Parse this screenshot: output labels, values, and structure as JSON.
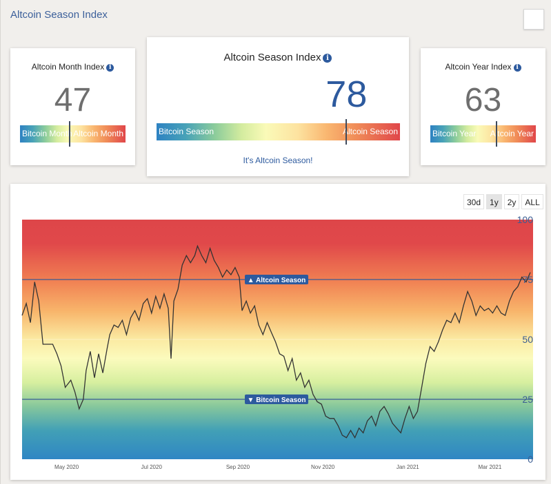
{
  "page": {
    "title": "Altcoin Season Index"
  },
  "cards": {
    "month": {
      "title": "Altcoin Month Index",
      "value": "47",
      "value_fraction": 0.47,
      "left_label": "Bitcoin Month",
      "right_label": "Altcoin Month"
    },
    "season": {
      "title": "Altcoin Season Index",
      "value": "78",
      "value_fraction": 0.78,
      "left_label": "Bitcoin Season",
      "right_label": "Altcoin Season",
      "status": "It's Altcoin Season!"
    },
    "year": {
      "title": "Altcoin Year Index",
      "value": "63",
      "value_fraction": 0.63,
      "left_label": "Bitcoin Year",
      "right_label": "Altcoin Year"
    }
  },
  "range_buttons": [
    {
      "label": "30d",
      "active": false
    },
    {
      "label": "1y",
      "active": true
    },
    {
      "label": "2y",
      "active": false
    },
    {
      "label": "ALL",
      "active": false
    }
  ],
  "chart_data": {
    "type": "line",
    "ylim": [
      0,
      100
    ],
    "yticks": [
      100,
      75,
      50,
      25,
      0
    ],
    "xlim": [
      "2020-03-30",
      "2021-04-01"
    ],
    "xticks": [
      {
        "label": "May 2020",
        "date": "2020-05-01"
      },
      {
        "label": "Jul 2020",
        "date": "2020-07-01"
      },
      {
        "label": "Sep 2020",
        "date": "2020-09-01"
      },
      {
        "label": "Nov 2020",
        "date": "2020-11-01"
      },
      {
        "label": "Jan 2021",
        "date": "2021-01-01"
      },
      {
        "label": "Mar 2021",
        "date": "2021-03-01"
      }
    ],
    "thresholds": [
      {
        "label": "▲ Altcoin Season",
        "value": 75
      },
      {
        "label": "▼ Bitcoin Season",
        "value": 25
      }
    ],
    "series": [
      {
        "color": "#333333",
        "points": [
          [
            "2020-03-30",
            60
          ],
          [
            "2020-04-02",
            65
          ],
          [
            "2020-04-05",
            57
          ],
          [
            "2020-04-08",
            74
          ],
          [
            "2020-04-11",
            66
          ],
          [
            "2020-04-14",
            48
          ],
          [
            "2020-04-18",
            48
          ],
          [
            "2020-04-21",
            48
          ],
          [
            "2020-04-24",
            44
          ],
          [
            "2020-04-27",
            39
          ],
          [
            "2020-04-30",
            30
          ],
          [
            "2020-05-04",
            33
          ],
          [
            "2020-05-07",
            28
          ],
          [
            "2020-05-10",
            21
          ],
          [
            "2020-05-13",
            25
          ],
          [
            "2020-05-15",
            37
          ],
          [
            "2020-05-18",
            45
          ],
          [
            "2020-05-21",
            34
          ],
          [
            "2020-05-24",
            44
          ],
          [
            "2020-05-27",
            36
          ],
          [
            "2020-05-30",
            46
          ],
          [
            "2020-06-01",
            52
          ],
          [
            "2020-06-04",
            56
          ],
          [
            "2020-06-07",
            55
          ],
          [
            "2020-06-10",
            58
          ],
          [
            "2020-06-13",
            52
          ],
          [
            "2020-06-16",
            59
          ],
          [
            "2020-06-19",
            62
          ],
          [
            "2020-06-22",
            58
          ],
          [
            "2020-06-25",
            65
          ],
          [
            "2020-06-28",
            67
          ],
          [
            "2020-07-01",
            61
          ],
          [
            "2020-07-04",
            68
          ],
          [
            "2020-07-07",
            63
          ],
          [
            "2020-07-10",
            69
          ],
          [
            "2020-07-13",
            63
          ],
          [
            "2020-07-15",
            42
          ],
          [
            "2020-07-17",
            66
          ],
          [
            "2020-07-20",
            71
          ],
          [
            "2020-07-23",
            81
          ],
          [
            "2020-07-26",
            85
          ],
          [
            "2020-07-29",
            82
          ],
          [
            "2020-08-01",
            85
          ],
          [
            "2020-08-03",
            89
          ],
          [
            "2020-08-06",
            85
          ],
          [
            "2020-08-09",
            82
          ],
          [
            "2020-08-12",
            88
          ],
          [
            "2020-08-15",
            83
          ],
          [
            "2020-08-18",
            80
          ],
          [
            "2020-08-21",
            76
          ],
          [
            "2020-08-24",
            79
          ],
          [
            "2020-08-27",
            77
          ],
          [
            "2020-08-30",
            80
          ],
          [
            "2020-09-02",
            76
          ],
          [
            "2020-09-04",
            62
          ],
          [
            "2020-09-07",
            66
          ],
          [
            "2020-09-10",
            61
          ],
          [
            "2020-09-13",
            64
          ],
          [
            "2020-09-16",
            56
          ],
          [
            "2020-09-19",
            52
          ],
          [
            "2020-09-22",
            57
          ],
          [
            "2020-09-25",
            53
          ],
          [
            "2020-09-28",
            49
          ],
          [
            "2020-10-01",
            44
          ],
          [
            "2020-10-04",
            43
          ],
          [
            "2020-10-07",
            37
          ],
          [
            "2020-10-10",
            42
          ],
          [
            "2020-10-13",
            33
          ],
          [
            "2020-10-16",
            36
          ],
          [
            "2020-10-19",
            30
          ],
          [
            "2020-10-22",
            33
          ],
          [
            "2020-10-25",
            27
          ],
          [
            "2020-10-28",
            24
          ],
          [
            "2020-10-31",
            23
          ],
          [
            "2020-11-03",
            18
          ],
          [
            "2020-11-06",
            17
          ],
          [
            "2020-11-09",
            17
          ],
          [
            "2020-11-12",
            14
          ],
          [
            "2020-11-15",
            10
          ],
          [
            "2020-11-18",
            9
          ],
          [
            "2020-11-21",
            12
          ],
          [
            "2020-11-24",
            9
          ],
          [
            "2020-11-27",
            13
          ],
          [
            "2020-11-30",
            11
          ],
          [
            "2020-12-03",
            16
          ],
          [
            "2020-12-06",
            18
          ],
          [
            "2020-12-09",
            14
          ],
          [
            "2020-12-12",
            20
          ],
          [
            "2020-12-15",
            22
          ],
          [
            "2020-12-18",
            19
          ],
          [
            "2020-12-21",
            15
          ],
          [
            "2020-12-24",
            13
          ],
          [
            "2020-12-27",
            11
          ],
          [
            "2020-12-30",
            17
          ],
          [
            "2021-01-02",
            22
          ],
          [
            "2021-01-05",
            17
          ],
          [
            "2021-01-08",
            20
          ],
          [
            "2021-01-11",
            30
          ],
          [
            "2021-01-14",
            40
          ],
          [
            "2021-01-17",
            47
          ],
          [
            "2021-01-20",
            45
          ],
          [
            "2021-01-23",
            49
          ],
          [
            "2021-01-26",
            54
          ],
          [
            "2021-01-29",
            58
          ],
          [
            "2021-02-01",
            57
          ],
          [
            "2021-02-04",
            61
          ],
          [
            "2021-02-07",
            57
          ],
          [
            "2021-02-10",
            64
          ],
          [
            "2021-02-13",
            70
          ],
          [
            "2021-02-16",
            66
          ],
          [
            "2021-02-19",
            60
          ],
          [
            "2021-02-22",
            64
          ],
          [
            "2021-02-25",
            62
          ],
          [
            "2021-02-28",
            63
          ],
          [
            "2021-03-03",
            61
          ],
          [
            "2021-03-06",
            64
          ],
          [
            "2021-03-09",
            61
          ],
          [
            "2021-03-12",
            60
          ],
          [
            "2021-03-15",
            66
          ],
          [
            "2021-03-18",
            70
          ],
          [
            "2021-03-21",
            72
          ],
          [
            "2021-03-24",
            76
          ],
          [
            "2021-03-27",
            74
          ],
          [
            "2021-03-30",
            78
          ]
        ]
      }
    ]
  }
}
